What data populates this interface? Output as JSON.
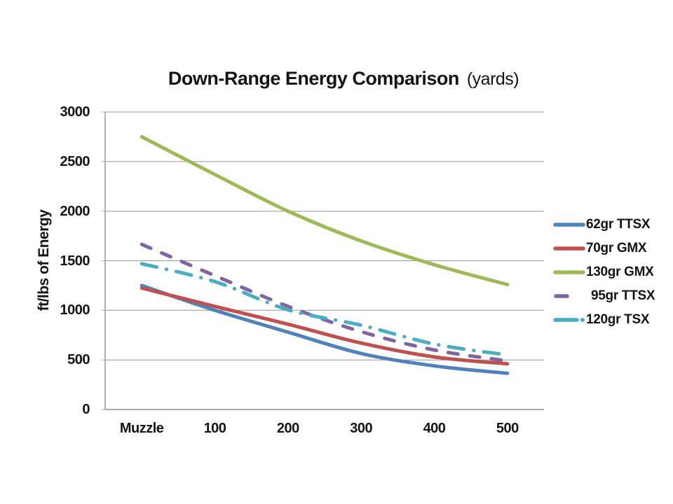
{
  "title": {
    "main": "Down-Range Energy Comparison",
    "suffix": "(yards)"
  },
  "chart_data": {
    "type": "line",
    "title": "Down-Range Energy Comparison (yards)",
    "categories": [
      "Muzzle",
      "100",
      "200",
      "300",
      "400",
      "500"
    ],
    "series": [
      {
        "name": "62gr TTSX",
        "color": "#4F81BD",
        "style": "solid",
        "values": [
          1250,
          1000,
          780,
          565,
          440,
          365
        ]
      },
      {
        "name": "70gr GMX",
        "color": "#C0504D",
        "style": "solid",
        "values": [
          1225,
          1040,
          860,
          670,
          530,
          460
        ]
      },
      {
        "name": "130gr GMX",
        "color": "#9BBB59",
        "style": "solid",
        "values": [
          2750,
          2370,
          2000,
          1700,
          1460,
          1260
        ]
      },
      {
        "name": "95gr TTSX",
        "color": "#8064A2",
        "style": "dash",
        "values": [
          1665,
          1350,
          1040,
          785,
          600,
          490
        ]
      },
      {
        "name": "120gr TSX",
        "color": "#4BACC6",
        "style": "dash-dot",
        "values": [
          1470,
          1290,
          1005,
          850,
          660,
          550
        ]
      }
    ],
    "xlabel": "",
    "ylabel": "ft/lbs of Energy",
    "ylim": [
      0,
      3000
    ],
    "ytick_step": 500,
    "ytick_labels": [
      "3000",
      "2500",
      "2000",
      "1500",
      "1000",
      "500",
      "0"
    ],
    "grid": true,
    "legend_position": "right"
  },
  "colors": {
    "gridline": "#969696",
    "axis": "#8F8F8F",
    "tick": "#BDBDBD",
    "text": "#141414"
  }
}
